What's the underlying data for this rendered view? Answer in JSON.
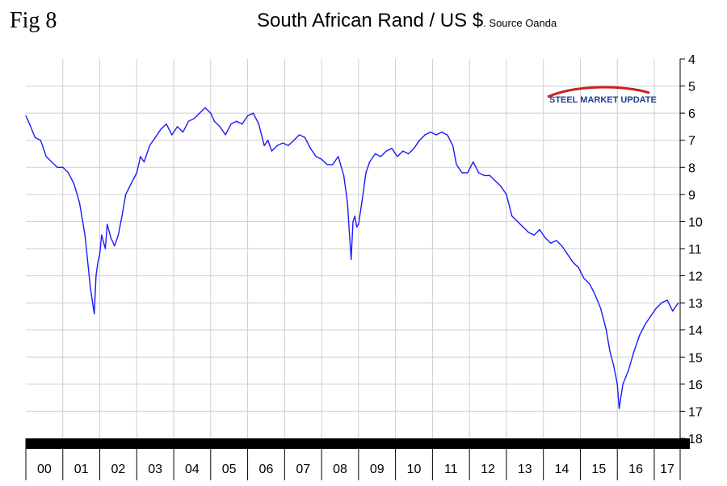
{
  "figure_label": "Fig 8",
  "title_main": "South African Rand / US $",
  "title_sub": ". Source Oanda",
  "logo_text": "STEEL MARKET UPDATE",
  "colors": {
    "line": "#1a1aff",
    "grid": "#cfcfcf",
    "axis": "#000000",
    "band": "#000000",
    "logo_red": "#cc1f1f",
    "logo_blue": "#1f3f8f"
  },
  "chart_data": {
    "type": "line",
    "title": "South African Rand / US $",
    "subtitle": ". Source Oanda",
    "xlabel": "",
    "ylabel": "",
    "y_inverted": true,
    "ylim": [
      4,
      18
    ],
    "y_ticks": [
      4,
      5,
      6,
      7,
      8,
      9,
      10,
      11,
      12,
      13,
      14,
      15,
      16,
      17,
      18
    ],
    "y_axis_side": "right",
    "xlim": [
      2000,
      2017.7
    ],
    "x_tick_labels": [
      "00",
      "01",
      "02",
      "03",
      "04",
      "05",
      "06",
      "07",
      "08",
      "09",
      "10",
      "11",
      "12",
      "13",
      "14",
      "15",
      "16",
      "17"
    ],
    "grid": true,
    "series": [
      {
        "values_x": [
          2000.0,
          2000.1,
          2000.25,
          2000.4,
          2000.55,
          2000.7,
          2000.85,
          2001.0,
          2001.15,
          2001.3,
          2001.45,
          2001.6,
          2001.75,
          2001.85,
          2001.9,
          2001.95,
          2002.0,
          2002.05,
          2002.15,
          2002.2,
          2002.3,
          2002.4,
          2002.5,
          2002.6,
          2002.7,
          2002.85,
          2003.0,
          2003.1,
          2003.2,
          2003.35,
          2003.5,
          2003.65,
          2003.8,
          2003.95,
          2004.1,
          2004.25,
          2004.4,
          2004.55,
          2004.7,
          2004.85,
          2005.0,
          2005.1,
          2005.25,
          2005.4,
          2005.55,
          2005.7,
          2005.85,
          2006.0,
          2006.15,
          2006.3,
          2006.45,
          2006.55,
          2006.65,
          2006.8,
          2006.95,
          2007.1,
          2007.25,
          2007.4,
          2007.55,
          2007.7,
          2007.85,
          2008.0,
          2008.15,
          2008.3,
          2008.45,
          2008.6,
          2008.7,
          2008.8,
          2008.85,
          2008.9,
          2008.95,
          2009.0,
          2009.1,
          2009.2,
          2009.3,
          2009.45,
          2009.6,
          2009.75,
          2009.9,
          2010.05,
          2010.2,
          2010.35,
          2010.5,
          2010.65,
          2010.8,
          2010.95,
          2011.1,
          2011.25,
          2011.4,
          2011.55,
          2011.65,
          2011.8,
          2011.95,
          2012.1,
          2012.25,
          2012.4,
          2012.55,
          2012.7,
          2012.85,
          2013.0,
          2013.15,
          2013.3,
          2013.45,
          2013.6,
          2013.75,
          2013.9,
          2014.05,
          2014.2,
          2014.35,
          2014.5,
          2014.65,
          2014.8,
          2014.95,
          2015.1,
          2015.25,
          2015.4,
          2015.55,
          2015.7,
          2015.8,
          2015.9,
          2016.0,
          2016.05,
          2016.15,
          2016.3,
          2016.45,
          2016.6,
          2016.75,
          2016.9,
          2017.05,
          2017.2,
          2017.35,
          2017.5,
          2017.65
        ],
        "values_y": [
          6.1,
          6.4,
          6.9,
          7.0,
          7.6,
          7.8,
          8.0,
          8.0,
          8.2,
          8.6,
          9.3,
          10.5,
          12.5,
          13.4,
          12.0,
          11.5,
          11.2,
          10.5,
          11.0,
          10.1,
          10.6,
          10.9,
          10.5,
          9.8,
          9.0,
          8.6,
          8.2,
          7.6,
          7.8,
          7.2,
          6.9,
          6.6,
          6.4,
          6.8,
          6.5,
          6.7,
          6.3,
          6.2,
          6.0,
          5.8,
          6.0,
          6.3,
          6.5,
          6.8,
          6.4,
          6.3,
          6.4,
          6.1,
          6.0,
          6.4,
          7.2,
          7.0,
          7.4,
          7.2,
          7.1,
          7.2,
          7.0,
          6.8,
          6.9,
          7.3,
          7.6,
          7.7,
          7.9,
          7.9,
          7.6,
          8.3,
          9.3,
          11.4,
          10.0,
          9.8,
          10.2,
          10.1,
          9.2,
          8.2,
          7.8,
          7.5,
          7.6,
          7.4,
          7.3,
          7.6,
          7.4,
          7.5,
          7.3,
          7.0,
          6.8,
          6.7,
          6.8,
          6.7,
          6.8,
          7.2,
          7.9,
          8.2,
          8.2,
          7.8,
          8.2,
          8.3,
          8.3,
          8.5,
          8.7,
          9.0,
          9.8,
          10.0,
          10.2,
          10.4,
          10.5,
          10.3,
          10.6,
          10.8,
          10.7,
          10.9,
          11.2,
          11.5,
          11.7,
          12.1,
          12.3,
          12.7,
          13.2,
          14.0,
          14.8,
          15.3,
          16.0,
          16.9,
          16.0,
          15.5,
          14.8,
          14.2,
          13.8,
          13.5,
          13.2,
          13.0,
          12.9,
          13.3,
          13.0
        ]
      }
    ]
  }
}
